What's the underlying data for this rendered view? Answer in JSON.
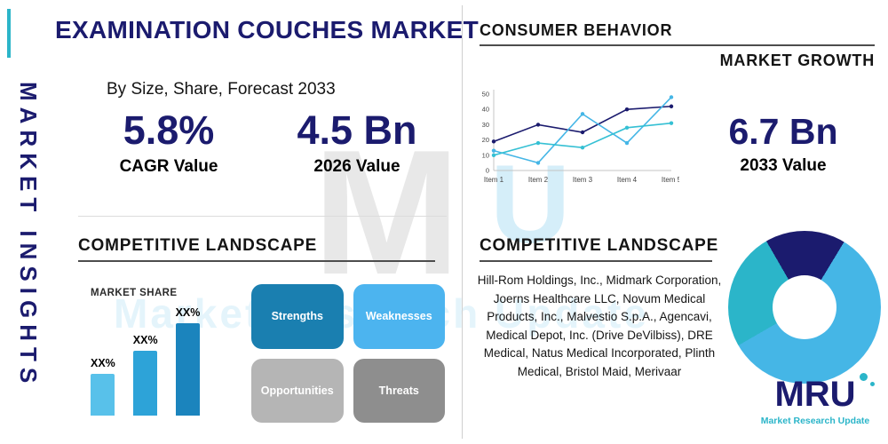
{
  "colors": {
    "navy": "#1b1b6e",
    "teal": "#2bb5c9",
    "lightblue": "#45b6e6"
  },
  "sidebar": {
    "vertical_title": "MARKET INSIGHTS"
  },
  "header": {
    "title": "EXAMINATION COUCHES MARKET",
    "subtitle": "By Size, Share, Forecast 2033"
  },
  "stats": {
    "cagr_value": "5.8%",
    "cagr_label": "CAGR Value",
    "v2026_value": "4.5 Bn",
    "v2026_label": "2026 Value",
    "v2033_value": "6.7 Bn",
    "v2033_label": "2033 Value"
  },
  "right_top": {
    "heading_line1": "CONSUMER BEHAVIOR",
    "heading_line2": "MARKET GROWTH"
  },
  "left_bottom": {
    "heading": "COMPETITIVE LANDSCAPE",
    "market_share_label": "MARKET SHARE"
  },
  "swot": {
    "items": [
      {
        "label": "Strengths",
        "color": "#1a7fb0"
      },
      {
        "label": "Weaknesses",
        "color": "#4cb4ef"
      },
      {
        "label": "Opportunities",
        "color": "#b5b5b5"
      },
      {
        "label": "Threats",
        "color": "#8e8e8e"
      }
    ]
  },
  "right_bottom": {
    "heading": "COMPETITIVE LANDSCAPE",
    "companies": "Hill-Rom Holdings, Inc., Midmark Corporation, Joerns Healthcare LLC, Novum Medical Products, Inc., Malvestio S.p.A., Agencavi, Medical Depot, Inc. (Drive DeVilbiss), DRE Medical, Natus Medical Incorporated, Plinth Medical, Bristol Maid, Merivaar"
  },
  "logo": {
    "text": "MRU",
    "tagline": "Market Research Update"
  },
  "watermark": {
    "letter_gray": "M",
    "letter_blue": "U",
    "text": "Market Research Update"
  },
  "chart_data": [
    {
      "type": "line",
      "title": "Market Growth",
      "x": [
        "Item 1",
        "Item 2",
        "Item 3",
        "Item 4",
        "Item 5"
      ],
      "ylim": [
        0,
        50
      ],
      "yticks": [
        0,
        10,
        20,
        30,
        40,
        50
      ],
      "legend": "none",
      "grid": false,
      "series": [
        {
          "name": "series-navy",
          "color": "#1b1b6e",
          "values": [
            19,
            30,
            25,
            40,
            42
          ]
        },
        {
          "name": "series-lightblue",
          "color": "#45b6e6",
          "values": [
            13,
            5,
            37,
            18,
            48
          ]
        },
        {
          "name": "series-teal",
          "color": "#35c0d4",
          "values": [
            10,
            18,
            15,
            28,
            31
          ]
        }
      ]
    },
    {
      "type": "bar",
      "title": "MARKET SHARE",
      "categories": [
        "XX%",
        "XX%",
        "XX%"
      ],
      "values": [
        18,
        28,
        40
      ],
      "ymax": 50,
      "colors": [
        "#58c1ea",
        "#2da3d8",
        "#1b84bd"
      ]
    },
    {
      "type": "donut",
      "start_angle_deg": -30,
      "slices": [
        {
          "name": "segment-navy",
          "value": 17,
          "color": "#1b1b6e"
        },
        {
          "name": "segment-lightblue",
          "value": 58,
          "color": "#45b6e6"
        },
        {
          "name": "segment-teal",
          "value": 25,
          "color": "#2bb5c9"
        }
      ]
    }
  ]
}
